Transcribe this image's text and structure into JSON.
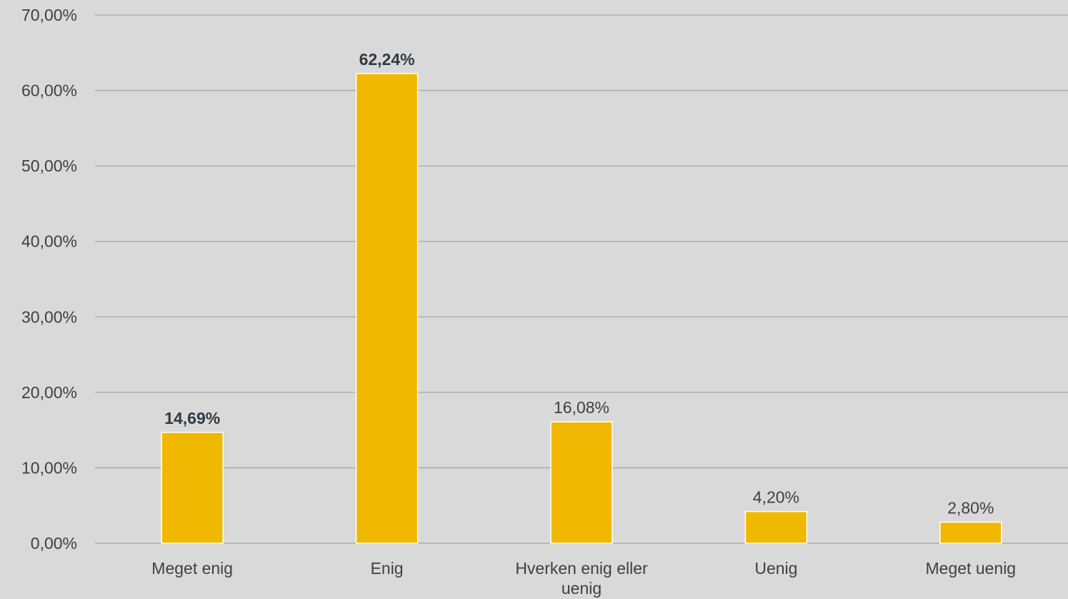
{
  "chart_data": {
    "type": "bar",
    "categories": [
      [
        "Meget enig"
      ],
      [
        "Enig"
      ],
      [
        "Hverken enig eller",
        "uenig"
      ],
      [
        "Uenig"
      ],
      [
        "Meget uenig"
      ]
    ],
    "values": [
      14.69,
      62.24,
      16.08,
      4.2,
      2.8
    ],
    "data_labels": [
      "14,69%",
      "62,24%",
      "16,08%",
      "4,20%",
      "2,80%"
    ],
    "data_labels_bold": [
      true,
      true,
      false,
      false,
      false
    ],
    "y_ticks": [
      0,
      10,
      20,
      30,
      40,
      50,
      60,
      70
    ],
    "y_tick_labels": [
      "0,00%",
      "10,00%",
      "20,00%",
      "30,00%",
      "40,00%",
      "50,00%",
      "60,00%",
      "70,00%"
    ],
    "ylim": [
      0,
      70
    ],
    "grid": true,
    "legend": "none",
    "title": "",
    "xlabel": "",
    "ylabel": "",
    "colors": {
      "background": "#d9d9d9",
      "bar": "#f0b800",
      "bar_outline": "#ffffff",
      "grid": "#a6a6a6",
      "text": "#404040",
      "bold_text": "#2f3a44"
    }
  }
}
